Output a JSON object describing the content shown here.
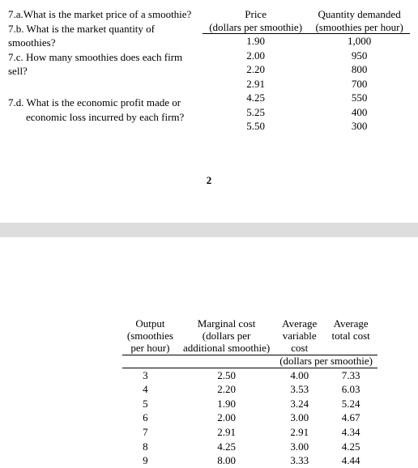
{
  "questions": {
    "q7a": "7.a.What is the market price of a smoothie?",
    "q7b": "7.b. What is the market quantity of smoothies?",
    "q7c": "7.c. How many smoothies does each firm sell?",
    "q7d_line1": "7.d. What is the economic profit made or",
    "q7d_line2": "economic loss incurred by each firm?"
  },
  "table1": {
    "headers": {
      "col1_l1": "Price",
      "col1_l2": "(dollars per smoothie)",
      "col2_l1": "Quantity demanded",
      "col2_l2": "(smoothies per hour)"
    },
    "rows": [
      {
        "price": "1.90",
        "qty": "1,000"
      },
      {
        "price": "2.00",
        "qty": "950"
      },
      {
        "price": "2.20",
        "qty": "800"
      },
      {
        "price": "2.91",
        "qty": "700"
      },
      {
        "price": "4.25",
        "qty": "550"
      },
      {
        "price": "5.25",
        "qty": "400"
      },
      {
        "price": "5.50",
        "qty": "300"
      }
    ]
  },
  "page_number": "2",
  "table2": {
    "headers": {
      "c1_l1": "Output",
      "c1_l2": "(smoothies",
      "c1_l3": "per hour)",
      "c2_l1": "Marginal cost",
      "c2_l2": "(dollars per",
      "c2_l3": "additional smoothie)",
      "c3_l1": "Average",
      "c3_l2": "variable",
      "c3_l3": "cost",
      "c4_l1": "Average",
      "c4_l2": "total cost",
      "sub_unit": "(dollars per smoothie)"
    },
    "rows": [
      {
        "out": "3",
        "mc": "2.50",
        "avc": "4.00",
        "atc": "7.33"
      },
      {
        "out": "4",
        "mc": "2.20",
        "avc": "3.53",
        "atc": "6.03"
      },
      {
        "out": "5",
        "mc": "1.90",
        "avc": "3.24",
        "atc": "5.24"
      },
      {
        "out": "6",
        "mc": "2.00",
        "avc": "3.00",
        "atc": "4.67"
      },
      {
        "out": "7",
        "mc": "2.91",
        "avc": "2.91",
        "atc": "4.34"
      },
      {
        "out": "8",
        "mc": "4.25",
        "avc": "3.00",
        "atc": "4.25"
      },
      {
        "out": "9",
        "mc": "8.00",
        "avc": "3.33",
        "atc": "4.44"
      }
    ]
  },
  "colors": {
    "gray_band": "#dddddd",
    "text": "#000000",
    "bg": "#ffffff"
  }
}
